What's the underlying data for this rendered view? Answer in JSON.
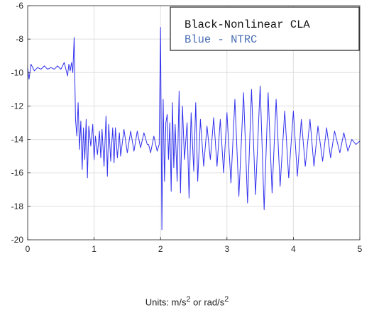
{
  "chart_data": {
    "type": "line",
    "xlim": [
      0,
      5
    ],
    "ylim": [
      -20,
      -6
    ],
    "x_ticks": [
      0,
      1,
      2,
      3,
      4,
      5
    ],
    "y_ticks": [
      -20,
      -18,
      -16,
      -14,
      -12,
      -10,
      -8,
      -6
    ],
    "grid": true,
    "legend": {
      "placement": "top-right",
      "entries": [
        {
          "label": "Black-Nonlinear CLA",
          "color": "#111111"
        },
        {
          "label": "Blue - NTRC",
          "color": "#4a6fb5"
        }
      ]
    },
    "series": [
      {
        "color": "#3333ee",
        "x": [
          0.0,
          0.02,
          0.05,
          0.1,
          0.15,
          0.2,
          0.25,
          0.3,
          0.35,
          0.4,
          0.45,
          0.5,
          0.55,
          0.6,
          0.62,
          0.64,
          0.66,
          0.68,
          0.7,
          0.72,
          0.74,
          0.76,
          0.78,
          0.8,
          0.82,
          0.84,
          0.86,
          0.88,
          0.9,
          0.92,
          0.95,
          0.98,
          1.0,
          1.02,
          1.05,
          1.08,
          1.1,
          1.12,
          1.15,
          1.18,
          1.2,
          1.22,
          1.25,
          1.28,
          1.3,
          1.32,
          1.35,
          1.38,
          1.4,
          1.45,
          1.5,
          1.55,
          1.6,
          1.65,
          1.7,
          1.75,
          1.8,
          1.82,
          1.85,
          1.9,
          1.95,
          1.98,
          2.0,
          2.02,
          2.04,
          2.06,
          2.08,
          2.1,
          2.12,
          2.14,
          2.16,
          2.18,
          2.2,
          2.22,
          2.25,
          2.28,
          2.3,
          2.33,
          2.36,
          2.4,
          2.43,
          2.46,
          2.5,
          2.53,
          2.56,
          2.6,
          2.65,
          2.7,
          2.75,
          2.8,
          2.85,
          2.9,
          2.95,
          3.0,
          3.06,
          3.12,
          3.18,
          3.25,
          3.31,
          3.37,
          3.43,
          3.5,
          3.56,
          3.62,
          3.68,
          3.74,
          3.8,
          3.87,
          3.93,
          4.0,
          4.06,
          4.12,
          4.18,
          4.25,
          4.31,
          4.37,
          4.44,
          4.5,
          4.56,
          4.62,
          4.7,
          4.76,
          4.82,
          4.88,
          4.94,
          5.0
        ],
        "y": [
          -9.7,
          -10.4,
          -9.5,
          -9.9,
          -9.7,
          -9.8,
          -9.6,
          -9.8,
          -9.7,
          -9.8,
          -9.6,
          -9.8,
          -9.4,
          -10.2,
          -9.5,
          -9.9,
          -9.4,
          -10.0,
          -7.9,
          -12.8,
          -13.8,
          -11.8,
          -14.6,
          -12.9,
          -15.8,
          -13.3,
          -15.2,
          -12.8,
          -16.3,
          -13.2,
          -14.4,
          -13.1,
          -15.2,
          -13.8,
          -14.9,
          -13.5,
          -15.1,
          -13.4,
          -15.6,
          -12.6,
          -16.2,
          -13.1,
          -15.3,
          -13.3,
          -15.4,
          -13.3,
          -15.1,
          -13.6,
          -15.0,
          -13.4,
          -14.8,
          -13.5,
          -14.7,
          -13.5,
          -14.5,
          -13.6,
          -14.3,
          -14.3,
          -14.8,
          -13.8,
          -14.7,
          -14.3,
          -7.3,
          -19.4,
          -11.6,
          -16.5,
          -13.0,
          -12.5,
          -15.2,
          -13.0,
          -17.1,
          -11.8,
          -15.7,
          -13.1,
          -16.5,
          -11.1,
          -17.2,
          -12.0,
          -15.2,
          -13.0,
          -17.5,
          -12.4,
          -15.9,
          -11.8,
          -16.5,
          -12.8,
          -15.6,
          -13.2,
          -15.2,
          -12.7,
          -15.6,
          -12.8,
          -16.0,
          -12.4,
          -16.6,
          -11.6,
          -17.4,
          -11.2,
          -17.8,
          -11.0,
          -17.3,
          -10.8,
          -18.2,
          -11.2,
          -17.2,
          -11.6,
          -16.8,
          -12.3,
          -16.3,
          -12.3,
          -16.2,
          -12.8,
          -15.6,
          -12.8,
          -15.6,
          -13.2,
          -15.3,
          -13.3,
          -15.1,
          -13.5,
          -14.8,
          -13.6,
          -14.7,
          -14.0,
          -14.3,
          -14.1
        ]
      }
    ]
  },
  "caption": {
    "prefix": "Units:  m/s",
    "sup1": "2",
    "middle": " or rad/s",
    "sup2": "2"
  }
}
